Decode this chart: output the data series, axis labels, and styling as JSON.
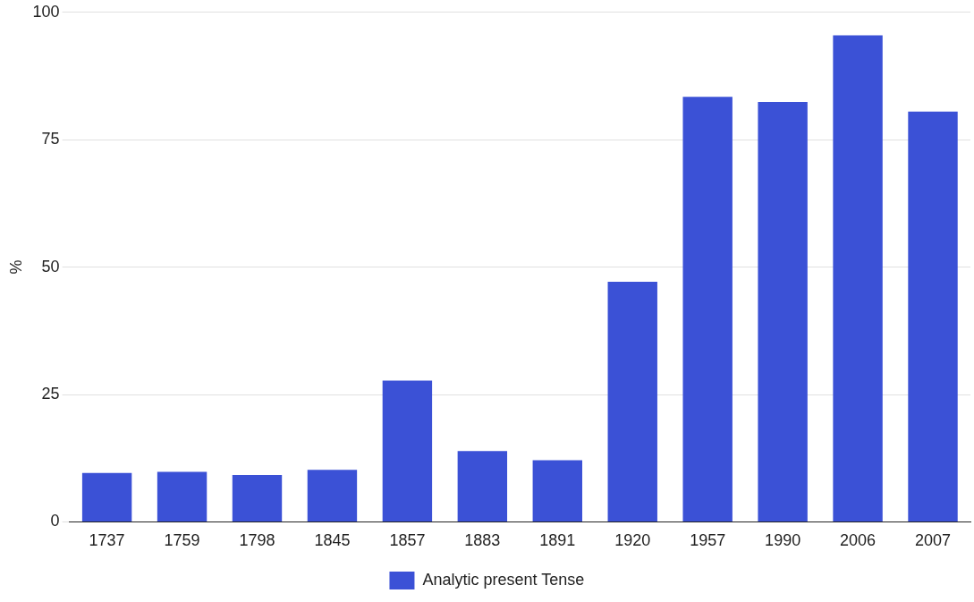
{
  "chart_data": {
    "type": "bar",
    "ylabel": "%",
    "categories": [
      "1737",
      "1759",
      "1798",
      "1845",
      "1857",
      "1883",
      "1891",
      "1920",
      "1957",
      "1990",
      "2006",
      "2007"
    ],
    "series": [
      {
        "name": "Analytic present Tense",
        "color": "#3b51d6",
        "values": [
          9.6,
          9.8,
          9.2,
          10.2,
          27.7,
          13.9,
          12.1,
          47.1,
          83.4,
          82.4,
          95.5,
          80.5
        ]
      }
    ],
    "ylim": [
      0,
      100
    ],
    "yticks": [
      0,
      25,
      50,
      75,
      100
    ],
    "grid": "y",
    "legend": "bottom"
  }
}
